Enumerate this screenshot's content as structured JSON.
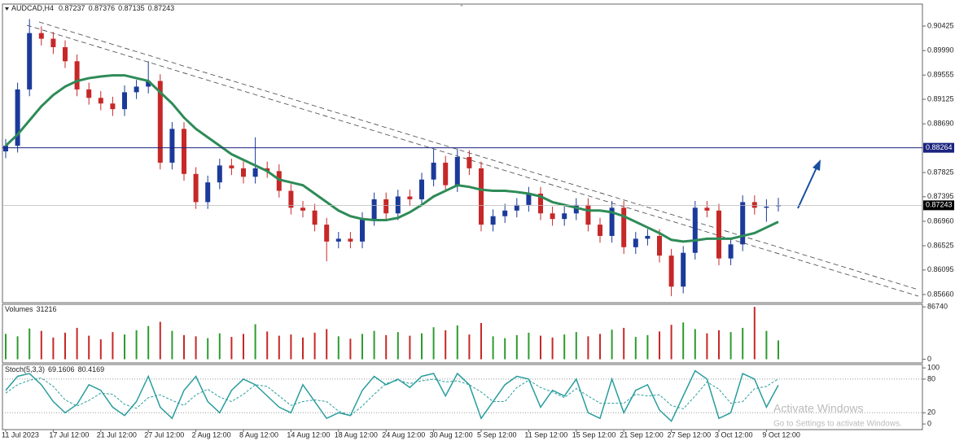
{
  "chart_data": [
    {
      "type": "candlestick",
      "title": "AUDCAD,H4",
      "categories": [
        "11 Jul 2023",
        null,
        null,
        null,
        "17 Jul 12:00",
        null,
        null,
        null,
        "21 Jul 12:00",
        null,
        null,
        null,
        "27 Jul 12:00",
        null,
        null,
        null,
        "2 Aug 12:00",
        null,
        null,
        null,
        "8 Aug 12:00",
        null,
        null,
        null,
        "14 Aug 12:00",
        null,
        null,
        null,
        "18 Aug 12:00",
        null,
        null,
        null,
        "24 Aug 12:00",
        null,
        null,
        null,
        "30 Aug 12:00",
        null,
        null,
        null,
        "5 Sep 12:00",
        null,
        null,
        null,
        "11 Sep 12:00",
        null,
        null,
        null,
        "15 Sep 12:00",
        null,
        null,
        null,
        "21 Sep 12:00",
        null,
        null,
        null,
        "27 Sep 12:00",
        null,
        null,
        null,
        "3 Oct 12:00",
        null,
        null,
        null,
        "9 Oct 12:00",
        null
      ],
      "open": [
        0.882,
        0.883,
        0.893,
        0.903,
        0.902,
        0.9005,
        0.898,
        0.893,
        0.8915,
        0.8905,
        0.8895,
        0.8925,
        0.8935,
        0.8945,
        0.88,
        0.886,
        0.878,
        0.873,
        0.8765,
        0.8795,
        0.879,
        0.8775,
        0.879,
        0.8785,
        0.875,
        0.872,
        0.8715,
        0.869,
        0.866,
        0.8665,
        0.866,
        0.87,
        0.8735,
        0.871,
        0.874,
        0.8735,
        0.877,
        0.88,
        0.876,
        0.881,
        0.879,
        0.869,
        0.8705,
        0.8715,
        0.8725,
        0.8745,
        0.871,
        0.87,
        0.871,
        0.8725,
        0.869,
        0.867,
        0.872,
        0.865,
        0.8665,
        0.867,
        0.8635,
        0.858,
        0.864,
        0.872,
        0.8715,
        0.863,
        0.8655,
        0.873,
        0.872,
        0.87237
      ],
      "high": [
        0.8842,
        0.8942,
        0.9055,
        0.9042,
        0.9032,
        0.9017,
        0.8992,
        0.8942,
        0.8927,
        0.8917,
        0.8937,
        0.8947,
        0.898,
        0.8957,
        0.8872,
        0.8872,
        0.8792,
        0.8777,
        0.8807,
        0.8807,
        0.8802,
        0.8845,
        0.8802,
        0.8797,
        0.8762,
        0.8732,
        0.8727,
        0.8702,
        0.8677,
        0.8677,
        0.8712,
        0.8747,
        0.8747,
        0.8752,
        0.8752,
        0.8782,
        0.8825,
        0.8812,
        0.8825,
        0.8822,
        0.8802,
        0.8717,
        0.8727,
        0.8737,
        0.8757,
        0.8757,
        0.8722,
        0.8722,
        0.8737,
        0.8737,
        0.8702,
        0.8732,
        0.8732,
        0.8677,
        0.8682,
        0.8682,
        0.8647,
        0.8652,
        0.8732,
        0.8732,
        0.8727,
        0.8667,
        0.8742,
        0.8742,
        0.8735,
        0.87376
      ],
      "low": [
        0.8808,
        0.8818,
        0.8918,
        0.9008,
        0.8993,
        0.8968,
        0.8918,
        0.8903,
        0.8893,
        0.8883,
        0.8883,
        0.8913,
        0.8923,
        0.8788,
        0.8788,
        0.8768,
        0.8718,
        0.8718,
        0.8753,
        0.8778,
        0.8763,
        0.8763,
        0.8773,
        0.8738,
        0.8708,
        0.8703,
        0.8678,
        0.8625,
        0.8648,
        0.8648,
        0.8648,
        0.8688,
        0.8698,
        0.8698,
        0.8723,
        0.8723,
        0.8758,
        0.8748,
        0.8748,
        0.8778,
        0.8678,
        0.8678,
        0.8693,
        0.8703,
        0.8713,
        0.8698,
        0.8688,
        0.8688,
        0.8698,
        0.8678,
        0.8658,
        0.8658,
        0.8638,
        0.8638,
        0.8653,
        0.8623,
        0.8563,
        0.8568,
        0.8628,
        0.8703,
        0.8618,
        0.8618,
        0.8643,
        0.8708,
        0.8695,
        0.87135
      ],
      "close": [
        0.883,
        0.893,
        0.903,
        0.902,
        0.9005,
        0.898,
        0.893,
        0.8915,
        0.8905,
        0.8895,
        0.8925,
        0.8935,
        0.8945,
        0.88,
        0.886,
        0.878,
        0.873,
        0.8765,
        0.8795,
        0.879,
        0.8775,
        0.879,
        0.8785,
        0.875,
        0.872,
        0.8715,
        0.869,
        0.866,
        0.8665,
        0.866,
        0.87,
        0.8735,
        0.871,
        0.874,
        0.8735,
        0.877,
        0.88,
        0.876,
        0.881,
        0.879,
        0.869,
        0.8705,
        0.8715,
        0.8725,
        0.8745,
        0.871,
        0.87,
        0.871,
        0.8725,
        0.869,
        0.867,
        0.872,
        0.865,
        0.8665,
        0.867,
        0.8635,
        0.858,
        0.864,
        0.872,
        0.8715,
        0.863,
        0.8655,
        0.873,
        0.872,
        0.8722,
        0.87243
      ],
      "up_color": "#1b3a9a",
      "down_color": "#c62828",
      "ma": {
        "color": "#2e8b57",
        "values": [
          0.883,
          0.885,
          0.8875,
          0.89,
          0.892,
          0.8935,
          0.8945,
          0.895,
          0.8953,
          0.8955,
          0.8955,
          0.895,
          0.8945,
          0.8925,
          0.8905,
          0.888,
          0.886,
          0.8845,
          0.883,
          0.8815,
          0.8805,
          0.8795,
          0.8785,
          0.877,
          0.8765,
          0.876,
          0.8745,
          0.873,
          0.8715,
          0.8705,
          0.87,
          0.8698,
          0.8698,
          0.8702,
          0.8712,
          0.8725,
          0.874,
          0.875,
          0.876,
          0.8757,
          0.8752,
          0.875,
          0.875,
          0.8748,
          0.8745,
          0.874,
          0.873,
          0.8725,
          0.872,
          0.8715,
          0.8715,
          0.8712,
          0.8705,
          0.8695,
          0.8685,
          0.8675,
          0.8663,
          0.866,
          0.8662,
          0.8665,
          0.8665,
          0.8665,
          0.867,
          0.8675,
          0.8685,
          0.8695
        ]
      },
      "ylim": [
        0.85515,
        0.90815
      ],
      "yticks": [
        0.90425,
        {
          "value": 0.8999,
          "label": "0.89990"
        },
        0.89555,
        0.89125,
        {
          "value": 0.8869,
          "label": "0.88690"
        },
        0.87825,
        0.87395,
        {
          "value": 0.8696,
          "label": "0.86960"
        },
        0.86525,
        0.86095,
        {
          "value": 0.8566,
          "label": "0.85660"
        }
      ],
      "level": 0.88264,
      "level_color": "#1a237e"
    },
    {
      "type": "bar",
      "title": "Volumes",
      "values": [
        42000,
        38000,
        51000,
        47000,
        36000,
        44000,
        52000,
        39000,
        33000,
        45000,
        41000,
        48000,
        55000,
        62000,
        47000,
        40000,
        38000,
        35000,
        43000,
        37000,
        42000,
        58000,
        46000,
        39000,
        41000,
        36000,
        44000,
        50000,
        38000,
        34000,
        42000,
        47000,
        40000,
        45000,
        39000,
        43000,
        53000,
        48000,
        56000,
        41000,
        60000,
        38000,
        35000,
        40000,
        44000,
        39000,
        36000,
        41000,
        45000,
        38000,
        42000,
        49000,
        52000,
        37000,
        40000,
        46000,
        57000,
        61000,
        50000,
        43000,
        48000,
        45000,
        52000,
        86740,
        47000,
        31216
      ],
      "up_color": "#2e9b2e",
      "down_color": "#c62828",
      "ylim": [
        -6000,
        91000
      ],
      "yticks": [
        0,
        86740
      ]
    },
    {
      "type": "line",
      "title": "Stoch(5,3,3)",
      "series": [
        {
          "color": "#2a9d9d",
          "values": [
            60,
            85,
            90,
            70,
            40,
            20,
            35,
            70,
            60,
            30,
            15,
            40,
            85,
            30,
            10,
            60,
            85,
            40,
            20,
            60,
            80,
            70,
            50,
            30,
            20,
            70,
            40,
            10,
            20,
            15,
            60,
            85,
            70,
            80,
            65,
            85,
            90,
            50,
            90,
            70,
            10,
            40,
            70,
            85,
            80,
            30,
            60,
            50,
            80,
            20,
            10,
            80,
            20,
            60,
            70,
            25,
            5,
            50,
            95,
            80,
            10,
            20,
            90,
            80,
            30,
            69.1606
          ]
        },
        {
          "color": "#2a9d9d",
          "values": [
            55,
            70,
            78,
            82,
            67,
            43,
            32,
            42,
            55,
            53,
            35,
            28,
            47,
            52,
            42,
            33,
            52,
            62,
            48,
            40,
            53,
            70,
            67,
            50,
            33,
            40,
            43,
            40,
            23,
            15,
            32,
            53,
            72,
            78,
            72,
            77,
            80,
            75,
            77,
            70,
            57,
            40,
            40,
            65,
            78,
            65,
            57,
            47,
            63,
            50,
            37,
            37,
            37,
            53,
            50,
            52,
            33,
            27,
            50,
            75,
            62,
            37,
            40,
            63,
            67,
            80.4169
          ]
        }
      ],
      "ylim": [
        -10,
        106
      ],
      "yticks": [
        0,
        20,
        80,
        100
      ],
      "levels": [
        20,
        80
      ]
    }
  ],
  "watermark": {
    "title": "Activate Windows",
    "subtitle": "Go to Settings to activate Windows."
  }
}
